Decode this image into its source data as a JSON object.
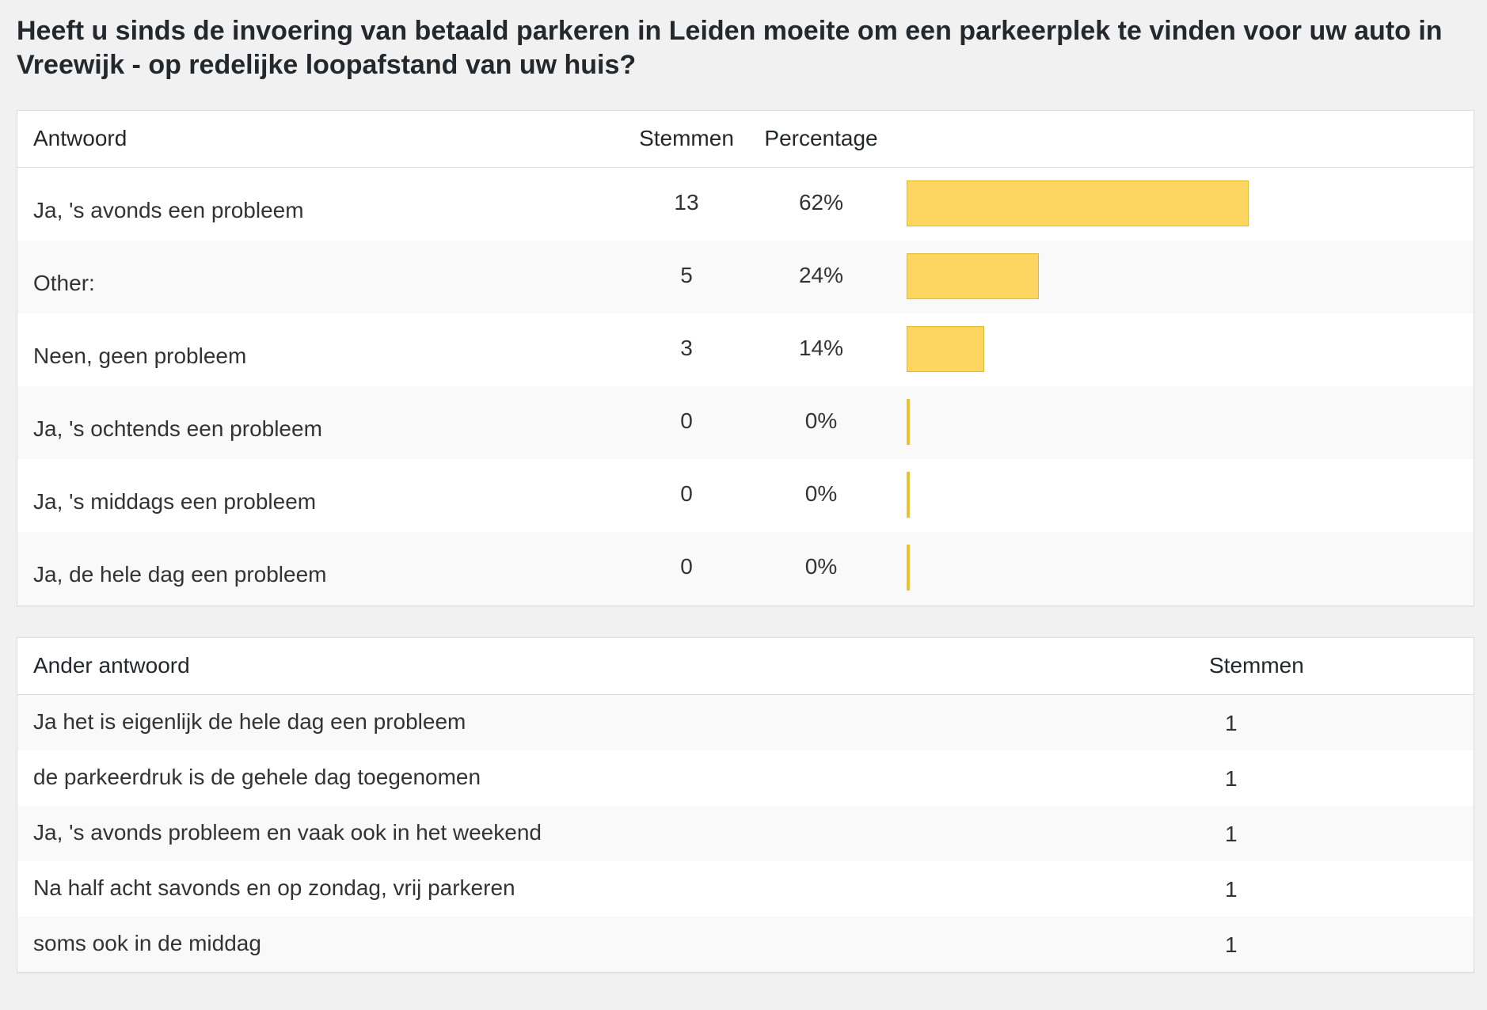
{
  "question": "Heeft u sinds de invoering van betaald parkeren in Leiden moeite om een parkeerplek te vinden voor uw auto in Vreewijk - op redelijke loopafstand van uw huis?",
  "results": {
    "headers": {
      "answer": "Antwoord",
      "votes": "Stemmen",
      "percentage": "Percentage"
    },
    "rows": [
      {
        "answer": "Ja, 's avonds een probleem",
        "votes": "13",
        "percentage": "62%",
        "fraction": 0.62
      },
      {
        "answer": "Other:",
        "votes": "5",
        "percentage": "24%",
        "fraction": 0.24
      },
      {
        "answer": "Neen, geen probleem",
        "votes": "3",
        "percentage": "14%",
        "fraction": 0.14
      },
      {
        "answer": "Ja, 's ochtends een probleem",
        "votes": "0",
        "percentage": "0%",
        "fraction": 0
      },
      {
        "answer": "Ja, 's middags een probleem",
        "votes": "0",
        "percentage": "0%",
        "fraction": 0
      },
      {
        "answer": "Ja, de hele dag een probleem",
        "votes": "0",
        "percentage": "0%",
        "fraction": 0
      }
    ],
    "bar_color": "#fcd661",
    "bar_border_color": "#e9b825"
  },
  "other_answers": {
    "headers": {
      "answer": "Ander antwoord",
      "votes": "Stemmen"
    },
    "rows": [
      {
        "answer": "Ja het is eigenlijk de hele dag een probleem",
        "votes": "1"
      },
      {
        "answer": "de parkeerdruk is de gehele dag toegenomen",
        "votes": "1"
      },
      {
        "answer": "Ja, 's avonds probleem en vaak ook in het weekend",
        "votes": "1"
      },
      {
        "answer": "Na half acht savonds en op zondag, vrij parkeren",
        "votes": "1"
      },
      {
        "answer": "soms ook in de middag",
        "votes": "1"
      }
    ]
  }
}
